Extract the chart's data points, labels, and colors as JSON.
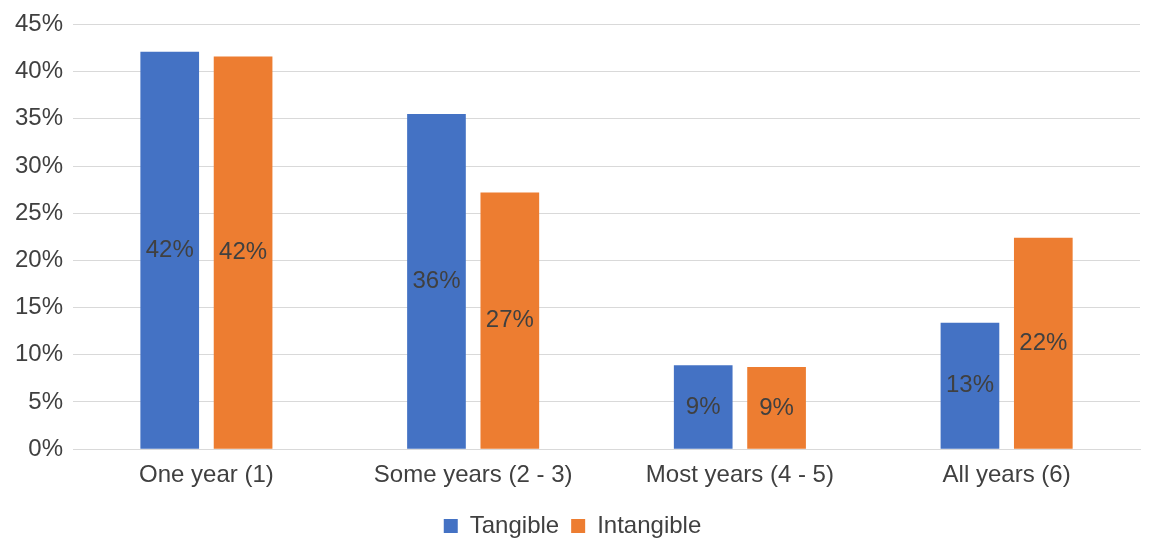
{
  "chart_data": {
    "type": "bar",
    "categories": [
      "One year (1)",
      "Some years (2 - 3)",
      "Most years (4 - 5)",
      "All years (6)"
    ],
    "series": [
      {
        "name": "Tangible",
        "color": "#4472c4",
        "values": [
          42.1,
          35.5,
          8.9,
          13.4
        ],
        "value_labels": [
          "42%",
          "36%",
          "9%",
          "13%"
        ]
      },
      {
        "name": "Intangible",
        "color": "#ed7d31",
        "values": [
          41.6,
          27.2,
          8.7,
          22.4
        ],
        "value_labels": [
          "42%",
          "27%",
          "9%",
          "22%"
        ]
      }
    ],
    "ylim": [
      0,
      45
    ],
    "yticks": [
      {
        "value": 0,
        "label": "0%"
      },
      {
        "value": 5,
        "label": "5%"
      },
      {
        "value": 10,
        "label": "10%"
      },
      {
        "value": 15,
        "label": "15%"
      },
      {
        "value": 20,
        "label": "20%"
      },
      {
        "value": 25,
        "label": "25%"
      },
      {
        "value": 30,
        "label": "30%"
      },
      {
        "value": 35,
        "label": "35%"
      },
      {
        "value": 40,
        "label": "40%"
      },
      {
        "value": 45,
        "label": "45%"
      }
    ],
    "grid": "y",
    "legend": "bottom"
  }
}
